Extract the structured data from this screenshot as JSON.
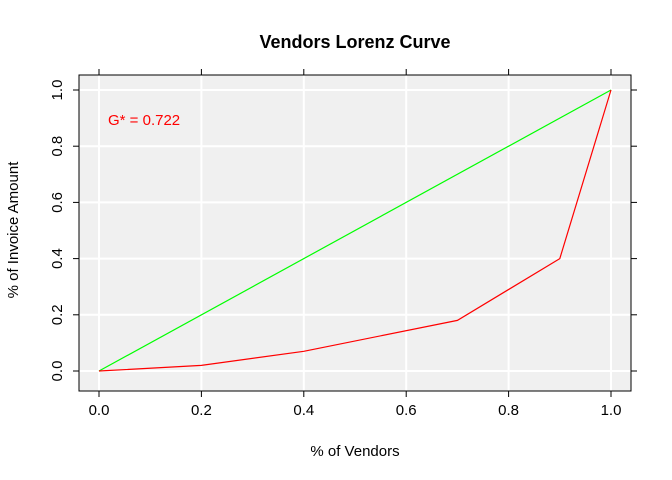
{
  "chart_data": {
    "type": "line",
    "title": "Vendors Lorenz Curve",
    "xlabel": "% of Vendors",
    "ylabel": "% of Invoice Amount",
    "xlim": [
      0,
      1
    ],
    "ylim": [
      0,
      1
    ],
    "x_ticks": [
      "0.0",
      "0.2",
      "0.4",
      "0.6",
      "0.8",
      "1.0"
    ],
    "y_ticks": [
      "0.0",
      "0.2",
      "0.4",
      "0.6",
      "0.8",
      "1.0"
    ],
    "grid": true,
    "background": "#f0f0f0",
    "series": [
      {
        "color": "#00ff00",
        "x": [
          0,
          1
        ],
        "y": [
          0,
          1
        ]
      },
      {
        "color": "#ff0000",
        "x": [
          0,
          0.2,
          0.4,
          0.7,
          0.9,
          1.0
        ],
        "y": [
          0,
          0.02,
          0.07,
          0.18,
          0.4,
          1.0
        ]
      }
    ],
    "annotation": {
      "text": "G* = 0.722",
      "color": "#ff0000"
    }
  }
}
